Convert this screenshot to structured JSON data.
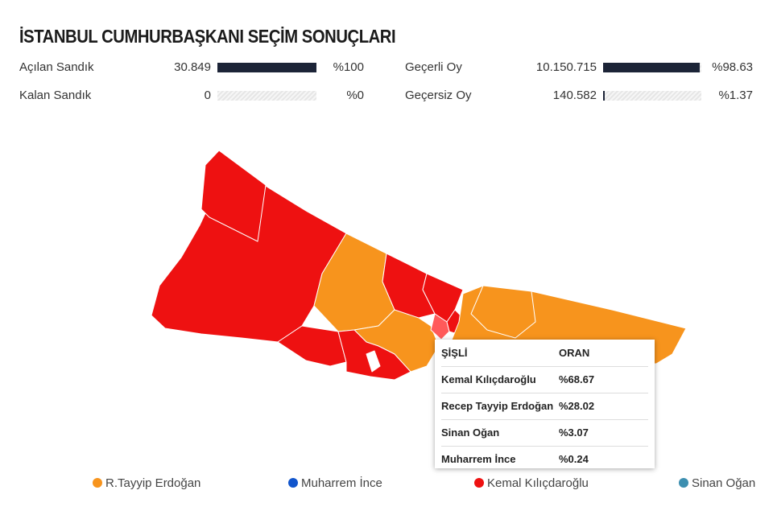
{
  "title": "İSTANBUL CUMHURBAŞKANI SEÇİM SONUÇLARI",
  "stats": [
    {
      "label": "Açılan Sandık",
      "count": "30.849",
      "percent": {
        "value": 100,
        "label": "%100"
      }
    },
    {
      "label": "Kalan Sandık",
      "count": "0",
      "percent": {
        "value": 0,
        "label": "%0"
      }
    },
    {
      "label": "Geçerli Oy",
      "count": "10.150.715",
      "percent": {
        "value": 98.63,
        "label": "%98.63"
      }
    },
    {
      "label": "Geçersiz Oy",
      "count": "140.582",
      "percent": {
        "value": 1.37,
        "label": "%1.37"
      }
    }
  ],
  "tooltip": {
    "district": "ŞİŞLİ",
    "header": "ORAN",
    "rows": [
      {
        "name": "Kemal Kılıçdaroğlu",
        "share": "%68.67"
      },
      {
        "name": "Recep Tayyip Erdoğan",
        "share": "%28.02"
      },
      {
        "name": "Sinan Oğan",
        "share": "%3.07"
      },
      {
        "name": "Muharrem İnce",
        "share": "%0.24"
      }
    ]
  },
  "legend": [
    {
      "name": "R.Tayyip Erdoğan",
      "color": "#f7941d"
    },
    {
      "name": "Muharrem İnce",
      "color": "#1155cc"
    },
    {
      "name": "Kemal Kılıçdaroğlu",
      "color": "#ee1111"
    },
    {
      "name": "Sinan Oğan",
      "color": "#3d8fb0"
    }
  ]
}
